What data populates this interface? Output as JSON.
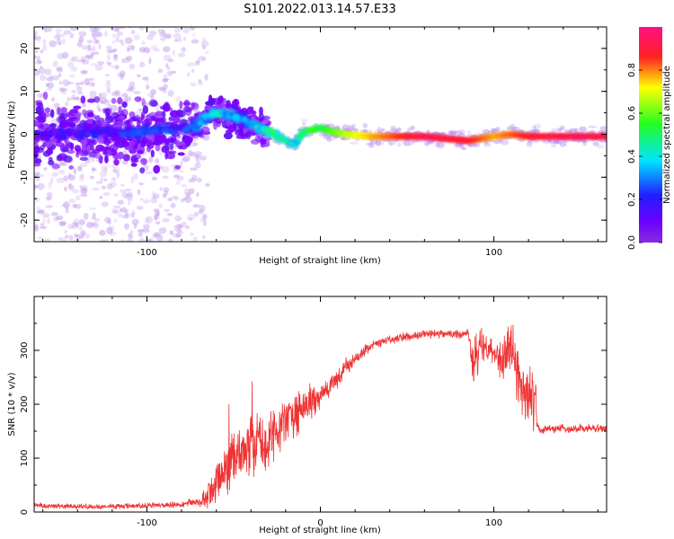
{
  "title": "S101.2022.013.14.57.E33",
  "colors": {
    "snr_line": "#ee3333",
    "axes": "#000000",
    "background": "#ffffff"
  },
  "chart_data": [
    {
      "type": "heatmap",
      "title": "",
      "xlabel": "Height of straight line (km)",
      "ylabel": "Frequency (Hz)",
      "xlim": [
        -165,
        165
      ],
      "ylim": [
        -25,
        25
      ],
      "x_ticks": [
        -100,
        0,
        100
      ],
      "x_tick_labels": [
        "-100",
        "",
        "100"
      ],
      "y_ticks": [
        -20,
        -10,
        0,
        10,
        20
      ],
      "y_tick_labels": [
        "-20",
        "-10",
        "0",
        "10",
        "20"
      ],
      "ridge": {
        "x": [
          -165,
          -130,
          -100,
          -80,
          -70,
          -62,
          -55,
          -45,
          -35,
          -28,
          -20,
          -15,
          -10,
          -5,
          0,
          5,
          15,
          30,
          60,
          85,
          100,
          110,
          120,
          140,
          165
        ],
        "y": [
          0,
          0.5,
          0.5,
          1.5,
          2.5,
          5,
          4.5,
          3.5,
          1.5,
          0.5,
          -1.5,
          -2.5,
          0.5,
          1,
          1.5,
          0.8,
          0,
          -0.5,
          -0.5,
          -1.5,
          -0.5,
          0,
          -0.5,
          -0.5,
          -0.5
        ],
        "amplitude": [
          0.15,
          0.2,
          0.25,
          0.25,
          0.3,
          0.45,
          0.4,
          0.35,
          0.4,
          0.5,
          0.45,
          0.4,
          0.5,
          0.6,
          0.55,
          0.6,
          0.7,
          0.8,
          0.95,
          0.9,
          0.8,
          0.85,
          0.9,
          0.95,
          0.95
        ]
      },
      "colorbar": {
        "label": "Normalized spectral amplitude",
        "range": [
          0,
          1
        ],
        "ticks": [
          0.0,
          0.2,
          0.4,
          0.6,
          0.8
        ],
        "tick_labels": [
          "0.0",
          "0.2",
          "0.4",
          "0.6",
          "0.8"
        ]
      },
      "grid": false
    },
    {
      "type": "line",
      "title": "",
      "xlabel": "Height of straight line (km)",
      "ylabel": "SNR (10 * v/v)",
      "xlim": [
        -165,
        165
      ],
      "ylim": [
        0,
        400
      ],
      "x_ticks": [
        -100,
        0,
        100
      ],
      "x_tick_labels": [
        "-100",
        "0",
        "100"
      ],
      "y_ticks": [
        0,
        100,
        200,
        300
      ],
      "y_tick_labels": [
        "0",
        "100",
        "200",
        "300"
      ],
      "series": [
        {
          "x": [
            -165,
            -130,
            -100,
            -80,
            -70,
            -65,
            -60,
            -55,
            -50,
            -45,
            -40,
            -35,
            -30,
            -25,
            -20,
            -15,
            -10,
            -5,
            0,
            5,
            10,
            15,
            20,
            25,
            30,
            40,
            50,
            60,
            70,
            80,
            85,
            88,
            90,
            95,
            100,
            105,
            110,
            115,
            120,
            124,
            125,
            127,
            130,
            140,
            150,
            165
          ],
          "y": [
            12,
            10,
            12,
            14,
            20,
            30,
            55,
            80,
            100,
            110,
            120,
            125,
            140,
            150,
            170,
            180,
            190,
            200,
            215,
            230,
            250,
            270,
            285,
            300,
            310,
            320,
            325,
            330,
            330,
            330,
            335,
            270,
            290,
            310,
            300,
            280,
            310,
            240,
            220,
            200,
            160,
            150,
            155,
            155,
            155,
            155
          ],
          "noise": [
            5,
            5,
            5,
            6,
            12,
            25,
            40,
            55,
            60,
            60,
            60,
            55,
            55,
            45,
            45,
            40,
            35,
            30,
            25,
            22,
            20,
            18,
            15,
            12,
            10,
            8,
            8,
            8,
            8,
            8,
            10,
            45,
            45,
            40,
            35,
            45,
            50,
            55,
            60,
            55,
            10,
            8,
            8,
            8,
            8,
            8
          ]
        }
      ],
      "grid": false
    }
  ]
}
